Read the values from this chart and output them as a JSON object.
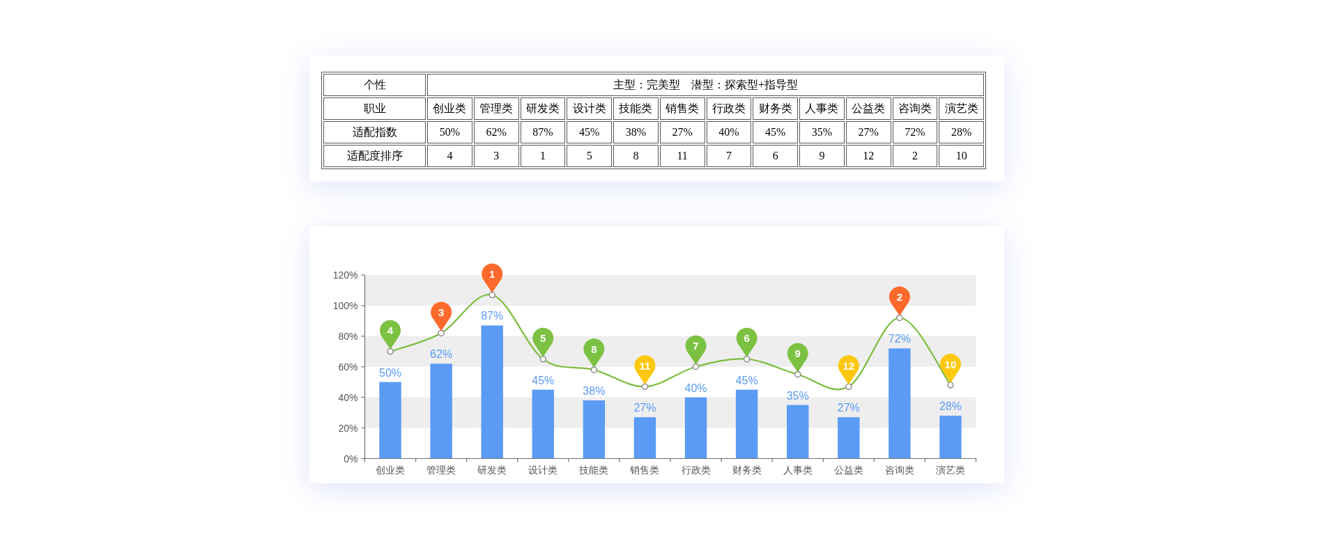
{
  "chart_data": {
    "type": "bar",
    "categories": [
      "创业类",
      "管理类",
      "研发类",
      "设计类",
      "技能类",
      "销售类",
      "行政类",
      "财务类",
      "人事类",
      "公益类",
      "咨询类",
      "演艺类"
    ],
    "series": [
      {
        "type": "bar",
        "color": "#5b9bf5",
        "values": [
          50,
          62,
          87,
          45,
          38,
          27,
          40,
          45,
          35,
          27,
          72,
          28
        ],
        "value_labels": [
          "50%",
          "62%",
          "87%",
          "45%",
          "38%",
          "27%",
          "40%",
          "45%",
          "35%",
          "27%",
          "72%",
          "28%"
        ]
      },
      {
        "type": "line",
        "color": "#7cbd3d",
        "marker": "circle",
        "values": [
          70,
          82,
          107,
          65,
          58,
          47,
          60,
          65,
          55,
          47,
          92,
          48
        ]
      }
    ],
    "ylim": [
      0,
      120
    ],
    "yticks": [
      {
        "value": 0,
        "label": "0%"
      },
      {
        "value": 20,
        "label": "20%"
      },
      {
        "value": 40,
        "label": "40%"
      },
      {
        "value": 60,
        "label": "60%"
      },
      {
        "value": 80,
        "label": "80%"
      },
      {
        "value": 100,
        "label": "100%"
      },
      {
        "value": 120,
        "label": "120%"
      }
    ],
    "bands": [
      {
        "axis": "y",
        "from": 20,
        "to": 40,
        "color": "#eeeeee"
      },
      {
        "axis": "y",
        "from": 60,
        "to": 80,
        "color": "#eeeeee"
      },
      {
        "axis": "y",
        "from": 100,
        "to": 120,
        "color": "#eeeeee"
      }
    ],
    "annotations": [
      "个性",
      "主型：完美型　潜型：探索型+指导型",
      "职业",
      "适配指数",
      "适配度排序",
      {
        "text": "4",
        "x": "创业类",
        "y": 70
      },
      {
        "text": "3",
        "x": "管理类",
        "y": 82
      },
      {
        "text": "1",
        "x": "研发类",
        "y": 107
      },
      {
        "text": "5",
        "x": "设计类",
        "y": 65
      },
      {
        "text": "8",
        "x": "技能类",
        "y": 58
      },
      {
        "text": "11",
        "x": "销售类",
        "y": 47
      },
      {
        "text": "7",
        "x": "行政类",
        "y": 60
      },
      {
        "text": "6",
        "x": "财务类",
        "y": 65
      },
      {
        "text": "9",
        "x": "人事类",
        "y": 55
      },
      {
        "text": "12",
        "x": "公益类",
        "y": 47
      },
      {
        "text": "2",
        "x": "咨询类",
        "y": 92
      },
      {
        "text": "10",
        "x": "演艺类",
        "y": 48
      }
    ]
  }
}
